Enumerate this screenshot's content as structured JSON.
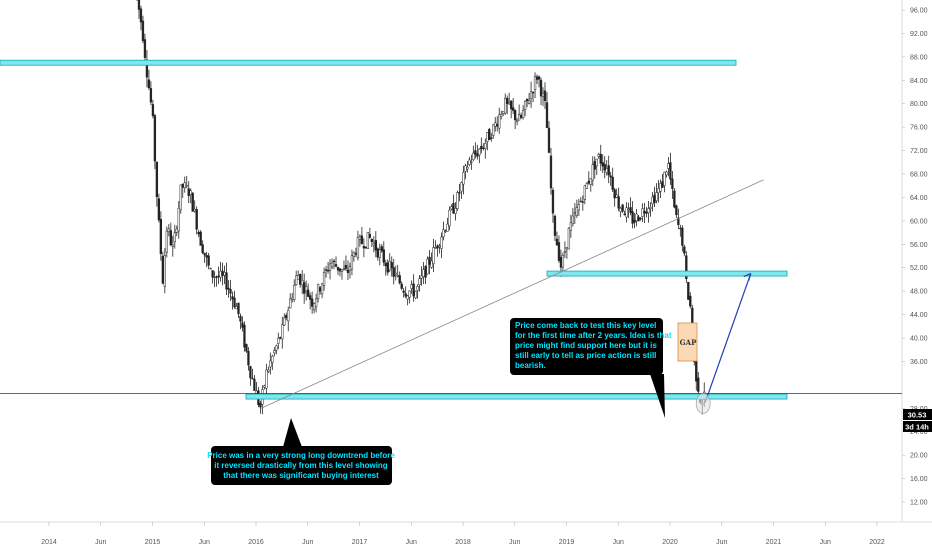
{
  "chart_data": {
    "type": "candlestick",
    "title": "",
    "x_axis": {
      "tick_labels": [
        "2014",
        "Jun",
        "2015",
        "Jun",
        "2016",
        "Jun",
        "2017",
        "Jun",
        "2018",
        "Jun",
        "2019",
        "Jun",
        "2020",
        "Jun",
        "2021",
        "Jun",
        "2022"
      ]
    },
    "y_axis": {
      "position": "right",
      "range": [
        12,
        98
      ],
      "tick_labels": [
        "96.00",
        "92.00",
        "88.00",
        "84.00",
        "80.00",
        "76.00",
        "72.00",
        "68.00",
        "64.00",
        "60.00",
        "56.00",
        "52.00",
        "48.00",
        "44.00",
        "40.00",
        "36.00",
        "32.00",
        "28.00",
        "24.00",
        "20.00",
        "16.00",
        "12.00"
      ]
    },
    "price_path_weekly_close": [
      {
        "date": "2014.85",
        "price": 98
      },
      {
        "date": "2014.90",
        "price": 93
      },
      {
        "date": "2014.95",
        "price": 85
      },
      {
        "date": "2015.00",
        "price": 78
      },
      {
        "date": "2015.05",
        "price": 62
      },
      {
        "date": "2015.10",
        "price": 50
      },
      {
        "date": "2015.14",
        "price": 59
      },
      {
        "date": "2015.20",
        "price": 55
      },
      {
        "date": "2015.28",
        "price": 66
      },
      {
        "date": "2015.36",
        "price": 65
      },
      {
        "date": "2015.46",
        "price": 57
      },
      {
        "date": "2015.56",
        "price": 51
      },
      {
        "date": "2015.70",
        "price": 50
      },
      {
        "date": "2015.82",
        "price": 45
      },
      {
        "date": "2015.95",
        "price": 34
      },
      {
        "date": "2016.04",
        "price": 28
      },
      {
        "date": "2016.10",
        "price": 34
      },
      {
        "date": "2016.25",
        "price": 41
      },
      {
        "date": "2016.40",
        "price": 51
      },
      {
        "date": "2016.55",
        "price": 46
      },
      {
        "date": "2016.72",
        "price": 53
      },
      {
        "date": "2016.88",
        "price": 51
      },
      {
        "date": "2016.98",
        "price": 56
      },
      {
        "date": "2017.10",
        "price": 57
      },
      {
        "date": "2017.25",
        "price": 53
      },
      {
        "date": "2017.45",
        "price": 48
      },
      {
        "date": "2017.55",
        "price": 48
      },
      {
        "date": "2017.70",
        "price": 54
      },
      {
        "date": "2017.85",
        "price": 60
      },
      {
        "date": "2017.95",
        "price": 64
      },
      {
        "date": "2018.05",
        "price": 70
      },
      {
        "date": "2018.20",
        "price": 73
      },
      {
        "date": "2018.30",
        "price": 76
      },
      {
        "date": "2018.40",
        "price": 80
      },
      {
        "date": "2018.55",
        "price": 77
      },
      {
        "date": "2018.72",
        "price": 85
      },
      {
        "date": "2018.80",
        "price": 79
      },
      {
        "date": "2018.87",
        "price": 60
      },
      {
        "date": "2018.95",
        "price": 52
      },
      {
        "date": "2019.02",
        "price": 58
      },
      {
        "date": "2019.15",
        "price": 64
      },
      {
        "date": "2019.30",
        "price": 71
      },
      {
        "date": "2019.40",
        "price": 69
      },
      {
        "date": "2019.50",
        "price": 63
      },
      {
        "date": "2019.65",
        "price": 60
      },
      {
        "date": "2019.80",
        "price": 63
      },
      {
        "date": "2019.92",
        "price": 66
      },
      {
        "date": "2019.98",
        "price": 70
      },
      {
        "date": "2020.05",
        "price": 61
      },
      {
        "date": "2020.13",
        "price": 56
      },
      {
        "date": "2020.15",
        "price": 50
      },
      {
        "date": "2020.20",
        "price": 45
      },
      {
        "date": "2020.22",
        "price": 37
      },
      {
        "date": "2020.30",
        "price": 29
      },
      {
        "date": "2020.34",
        "price": 30.53
      }
    ],
    "horizontal_levels": [
      {
        "price": 87,
        "style": "zone",
        "color": "#26c6da"
      },
      {
        "price": 51,
        "style": "zone",
        "color": "#26c6da"
      },
      {
        "price": 30,
        "style": "zone",
        "color": "#26c6da"
      },
      {
        "price": 30.53,
        "style": "line",
        "color": "#333333"
      }
    ],
    "trendline": {
      "from": {
        "date": "2016.05",
        "price": 28
      },
      "to": {
        "date": "2021.00",
        "price": 67
      }
    },
    "projection_arrow": {
      "from": {
        "date": "2020.34",
        "price": 29
      },
      "to": {
        "date": "2020.78",
        "price": 51
      },
      "color": "#1e40af"
    },
    "current_price_label": "30.53",
    "countdown_label": "3d 14h",
    "colors": {
      "candle": "#222222",
      "zone_fill": "#7ee8ef",
      "zone_border": "#1aa6b0",
      "note_bg": "#000000",
      "note_text": "#00e5ff",
      "gap_fill": "#fbd9b4",
      "gap_border": "#e08a3c"
    }
  },
  "annotations": {
    "note_left": [
      "Price was in a very strong long downtrend before",
      "it reversed drastically from this level showing",
      "that there was significant buying interest"
    ],
    "note_right": [
      "Price come back to test this key level",
      "for the first time after 2 years. Idea is that",
      "price might find support here but it is",
      "still early to tell as price action is still",
      "bearish."
    ],
    "gap_label": "GAP"
  }
}
